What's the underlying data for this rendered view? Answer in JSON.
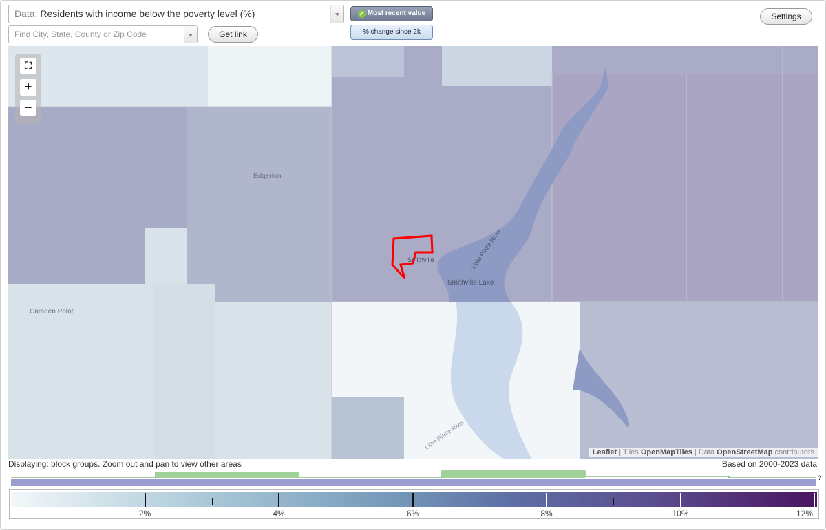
{
  "controls": {
    "data_prefix": "Data:",
    "data_value": "Residents with income below the poverty level (%)",
    "search_placeholder": "Find City, State, County or Zip Code",
    "get_link": "Get link",
    "toggle_recent": "Most recent value",
    "toggle_change": "% change since 2k",
    "settings": "Settings"
  },
  "map": {
    "labels": {
      "edgerton": "Edgerton",
      "camden_point": "Camden Point",
      "smithville_lake": "Smithville Lake",
      "little_platte_river": "Little Platte River",
      "little_platte_river_south": "Little Platte River",
      "smithville": "Smithville"
    },
    "attribution": {
      "leaflet": "Leaflet",
      "tiles_prefix": "Tiles",
      "tiles": "OpenMapTiles",
      "data_prefix": "Data",
      "data": "OpenStreetMap",
      "contributors": "contributors"
    },
    "highlight_color": "#ff0000"
  },
  "status": {
    "displaying": "Displaying: block groups. Zoom out and pan to view other areas",
    "based_on": "Based on 2000-2023 data"
  },
  "legend": {
    "help": "?",
    "ticks": [
      "2%",
      "4%",
      "6%",
      "8%",
      "10%",
      "12%"
    ],
    "min": 0,
    "max": 12,
    "colors": [
      "#f3f7f9",
      "#a8c7d7",
      "#7397b9",
      "#5e6fa5",
      "#5b4d8f",
      "#4a1560"
    ]
  }
}
